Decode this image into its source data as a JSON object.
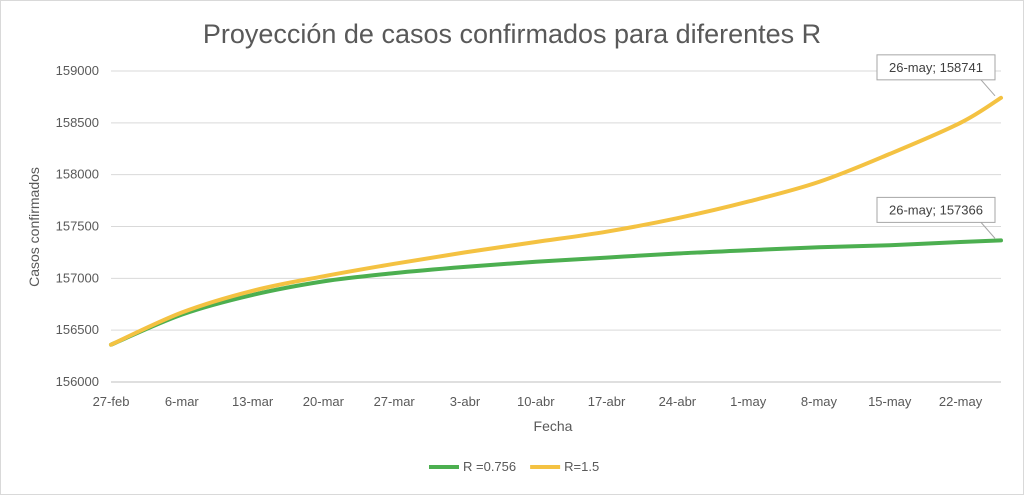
{
  "chart_data": {
    "type": "line",
    "title": "Proyección de casos confirmados para diferentes R",
    "xlabel": "Fecha",
    "ylabel": "Casos confirmados",
    "ylim": [
      156000,
      159000
    ],
    "yticks": [
      156000,
      156500,
      157000,
      157500,
      158000,
      158500,
      159000
    ],
    "xticks": [
      "27-feb",
      "6-mar",
      "13-mar",
      "20-mar",
      "27-mar",
      "3-abr",
      "10-abr",
      "17-abr",
      "24-abr",
      "1-may",
      "8-may",
      "15-may",
      "22-may"
    ],
    "grid": "horizontal",
    "legend": "bottom",
    "x": [
      "27-feb",
      "6-mar",
      "13-mar",
      "20-mar",
      "27-mar",
      "3-abr",
      "10-abr",
      "17-abr",
      "24-abr",
      "1-may",
      "8-may",
      "15-may",
      "22-may",
      "26-may"
    ],
    "series": [
      {
        "name": "R =0.756",
        "color": "#4caf50",
        "values": [
          156360,
          156650,
          156840,
          156970,
          157050,
          157110,
          157160,
          157200,
          157240,
          157270,
          157300,
          157320,
          157350,
          157366
        ]
      },
      {
        "name": "R=1.5",
        "color": "#f4c242",
        "values": [
          156360,
          156670,
          156880,
          157020,
          157140,
          157250,
          157350,
          157450,
          157580,
          157740,
          157930,
          158200,
          158500,
          158741
        ]
      }
    ],
    "annotations": [
      {
        "series": "R=1.5",
        "x": "26-may",
        "text": "26-may; 158741"
      },
      {
        "series": "R =0.756",
        "x": "26-may",
        "text": "26-may; 157366"
      }
    ]
  }
}
